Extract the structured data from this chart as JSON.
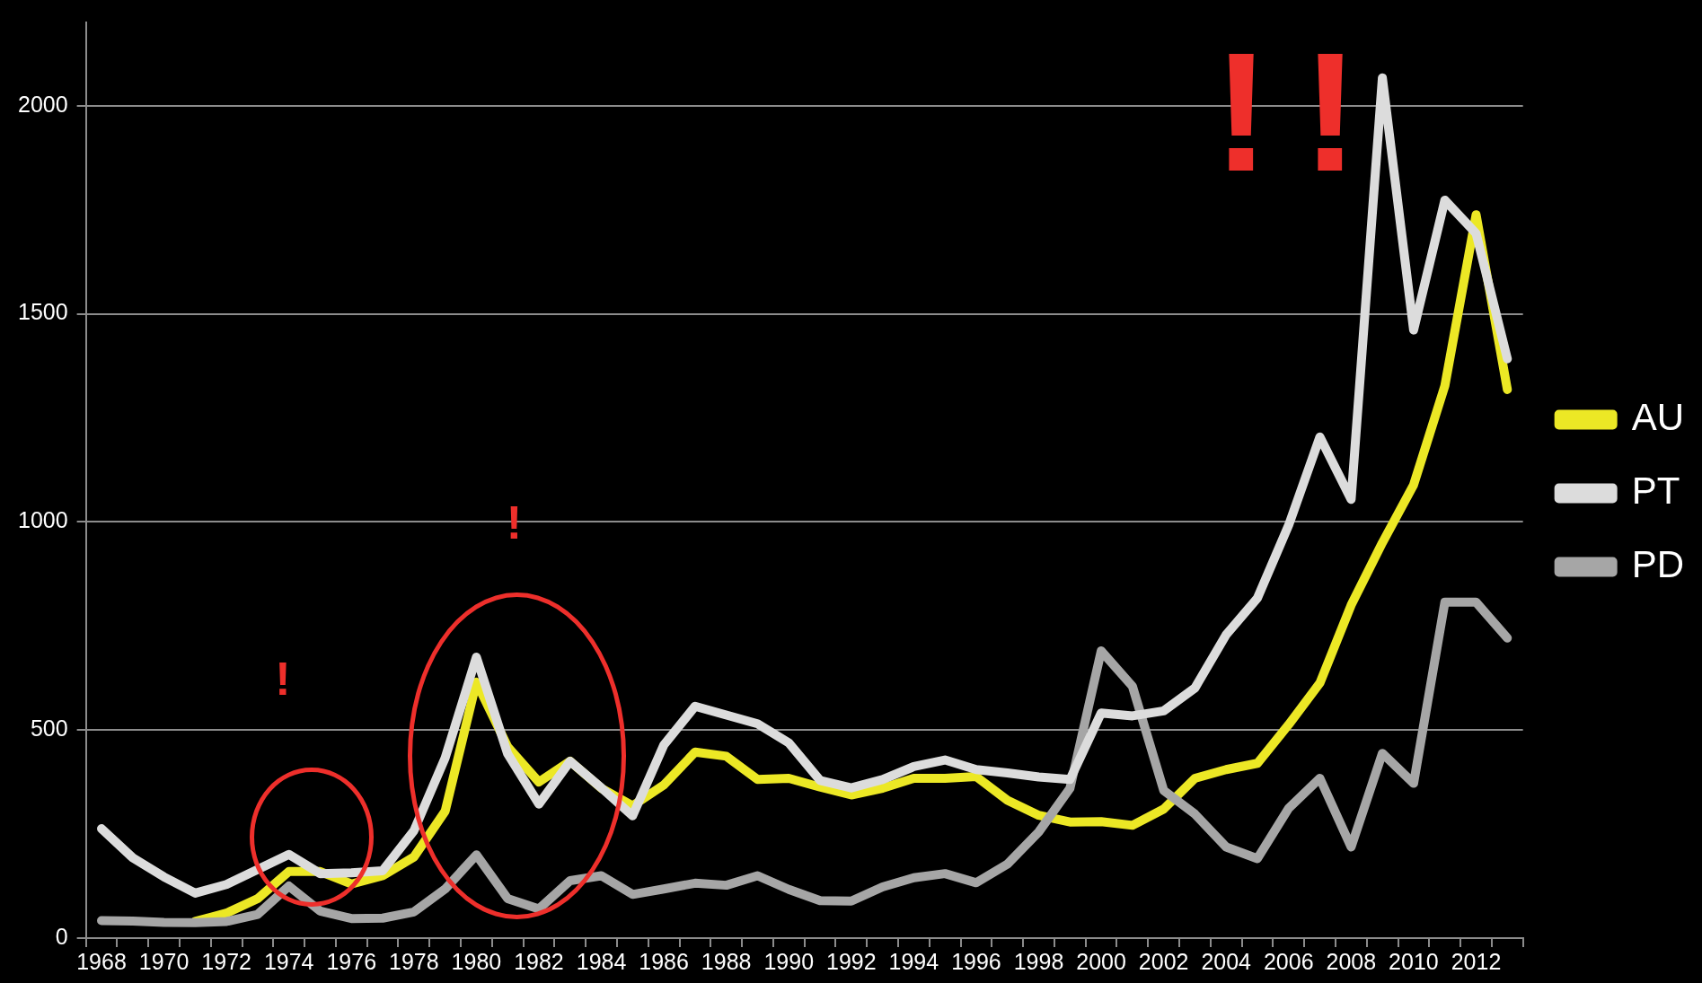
{
  "chart_data": {
    "type": "line",
    "categories": [
      "1968",
      null,
      "1970",
      null,
      "1972",
      null,
      "1974",
      null,
      "1976",
      null,
      "1978",
      null,
      "1980",
      null,
      "1982",
      null,
      "1984",
      null,
      "1986",
      null,
      "1988",
      null,
      "1990",
      null,
      "1992",
      null,
      "1994",
      null,
      "1996",
      null,
      "1998",
      null,
      "2000",
      null,
      "2002",
      null,
      "2004",
      null,
      "2006",
      null,
      "2008",
      null,
      "2010",
      null,
      "2012",
      null
    ],
    "series": [
      {
        "name": "AU",
        "color": "#ece825",
        "values": [
          null,
          null,
          null,
          40,
          60,
          95,
          160,
          160,
          130,
          150,
          195,
          305,
          615,
          460,
          375,
          425,
          360,
          318,
          368,
          447,
          437,
          381,
          384,
          363,
          344,
          360,
          384,
          384,
          388,
          331,
          295,
          279,
          280,
          271,
          310,
          384,
          405,
          420,
          513,
          613,
          800,
          950,
          1089,
          1327,
          1738,
          1318
        ]
      },
      {
        "name": "PT",
        "color": "#dcdcdc",
        "values": [
          263,
          193,
          147,
          108,
          129,
          165,
          201,
          155,
          157,
          162,
          258,
          433,
          675,
          443,
          322,
          425,
          361,
          294,
          464,
          557,
          536,
          515,
          469,
          379,
          361,
          381,
          412,
          428,
          405,
          397,
          387,
          381,
          541,
          534,
          546,
          601,
          729,
          817,
          992,
          1204,
          1054,
          2067,
          1461,
          1773,
          1693,
          1392
        ]
      },
      {
        "name": "PD",
        "color": "#a6a6a6",
        "values": [
          42,
          41,
          38,
          37,
          40,
          57,
          125,
          65,
          47,
          48,
          63,
          118,
          200,
          95,
          70,
          138,
          150,
          105,
          118,
          132,
          127,
          150,
          117,
          90,
          89,
          123,
          145,
          155,
          133,
          178,
          255,
          360,
          690,
          605,
          355,
          298,
          219,
          191,
          312,
          384,
          219,
          444,
          372,
          807,
          807,
          721
        ]
      }
    ],
    "ylim": [
      0,
      2200
    ],
    "yticks": [
      0,
      500,
      1000,
      1500,
      2000
    ],
    "grid": "y",
    "legend": "right",
    "marker": "none",
    "line_style": "solid",
    "annotations": [
      "!",
      "!",
      "!",
      "!"
    ]
  }
}
